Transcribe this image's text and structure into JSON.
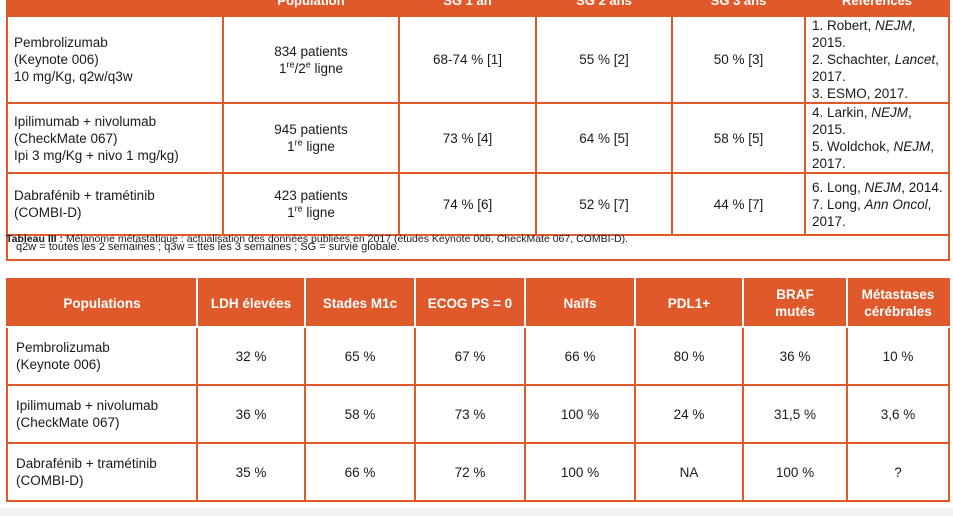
{
  "table1": {
    "headers": [
      "",
      "Population",
      "SG 1 an",
      "SG 2 ans",
      "SG 3 ans",
      "Références"
    ],
    "rows": [
      {
        "treatment": [
          "Pembrolizumab",
          "(Keynote 006)",
          "10 mg/Kg, q2w/q3w"
        ],
        "population_count": "834 patients",
        "population_line": "1re/2e ligne",
        "sg1": "68-74 % [1]",
        "sg2": "55 % [2]",
        "sg3": "50 % [3]",
        "refs": [
          {
            "pre": "1. Robert, ",
            "journal": "NEJM",
            "post": ", 2015."
          },
          {
            "pre": "2. Schachter, ",
            "journal": "Lancet",
            "post": ", 2017."
          },
          {
            "pre": "3. ESMO, 2017.",
            "journal": "",
            "post": ""
          }
        ]
      },
      {
        "treatment": [
          "Ipilimumab + nivolumab",
          "(CheckMate 067)",
          "Ipi 3 mg/Kg + nivo 1 mg/kg)"
        ],
        "population_count": "945 patients",
        "population_line": "1re ligne",
        "sg1": "73 % [4]",
        "sg2": "64 % [5]",
        "sg3": "58 % [5]",
        "refs": [
          {
            "pre": "4. Larkin, ",
            "journal": "NEJM",
            "post": ", 2015."
          },
          {
            "pre": "5. Woldchok, ",
            "journal": "NEJM",
            "post": ", 2017."
          }
        ]
      },
      {
        "treatment": [
          "Dabrafénib + tramétinib",
          "(COMBI-D)"
        ],
        "population_count": "423 patients",
        "population_line": "1re ligne",
        "sg1": "74 % [6]",
        "sg2": "52 % [7]",
        "sg3": "44 % [7]",
        "refs": [
          {
            "pre": "6. Long, ",
            "journal": "NEJM",
            "post": ", 2014."
          },
          {
            "pre": "7. Long, ",
            "journal": "Ann Oncol",
            "post": ", 2017."
          }
        ]
      }
    ],
    "footnote": "q2w = toutes les 2 semaines ; q3w = ttes les 3 semaines ; SG = survie globale."
  },
  "caption": {
    "label": "Tableau III :",
    "text": " Mélanome métastatique : actualisation des données publiées en 2017 (études Keynote 006, CheckMate 067, COMBI-D)."
  },
  "table2": {
    "headers": [
      "Populations",
      "LDH élevées",
      "Stades M1c",
      "ECOG PS = 0",
      "Naïfs",
      "PDL1+",
      "BRAF mutés",
      "Métastases cérébrales"
    ],
    "rows": [
      {
        "name": [
          "Pembrolizumab",
          "(Keynote 006)"
        ],
        "values": [
          "32 %",
          "65 %",
          "67 %",
          "66 %",
          "80 %",
          "36 %",
          "10 %"
        ]
      },
      {
        "name": [
          "Ipilimumab + nivolumab",
          "(CheckMate 067)"
        ],
        "values": [
          "36 %",
          "58 %",
          "73 %",
          "100 %",
          "24 %",
          "31,5 %",
          "3,6 %"
        ]
      },
      {
        "name": [
          "Dabrafénib + tramétinib",
          "(COMBI-D)"
        ],
        "values": [
          "35 %",
          "66 %",
          "72 %",
          "100 %",
          "NA",
          "100 %",
          "?"
        ]
      }
    ]
  },
  "colors": {
    "accent": "#e0592a",
    "header_text": "#ffffff"
  }
}
